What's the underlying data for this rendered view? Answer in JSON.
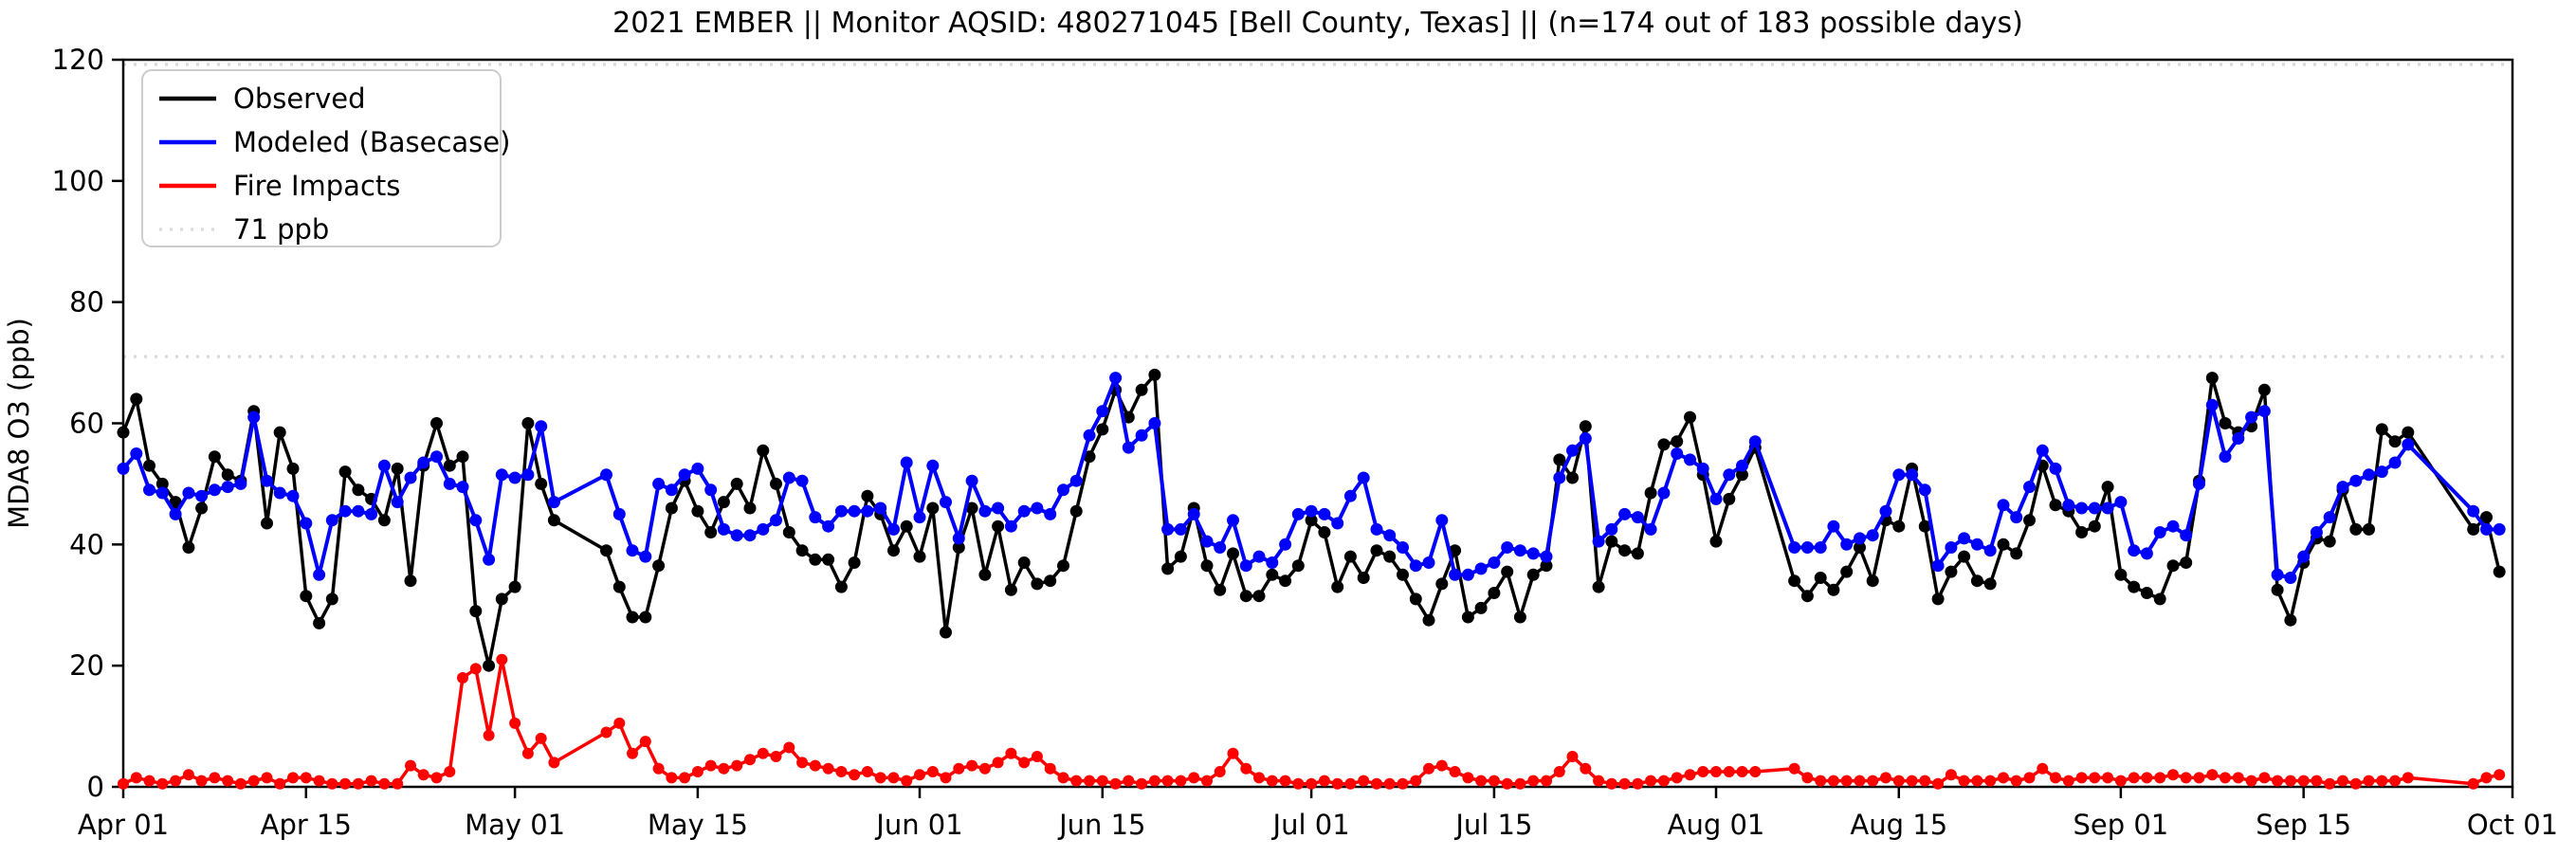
{
  "title": "2021 EMBER || Monitor AQSID: 480271045 [Bell County, Texas] || (n=174 out of 183 possible days)",
  "axes": {
    "ylabel": "MDA8 O3 (ppb)",
    "ylim": [
      0,
      120
    ],
    "yticks": [
      {
        "label": "0",
        "value": 0
      },
      {
        "label": "20",
        "value": 20
      },
      {
        "label": "40",
        "value": 40
      },
      {
        "label": "60",
        "value": 60
      },
      {
        "label": "80",
        "value": 80
      },
      {
        "label": "100",
        "value": 100
      },
      {
        "label": "120",
        "value": 120
      }
    ],
    "xticks": [
      {
        "label": "Apr 01",
        "day": 0
      },
      {
        "label": "Apr 15",
        "day": 14
      },
      {
        "label": "May 01",
        "day": 30
      },
      {
        "label": "May 15",
        "day": 44
      },
      {
        "label": "Jun 01",
        "day": 61
      },
      {
        "label": "Jun 15",
        "day": 75
      },
      {
        "label": "Jul 01",
        "day": 91
      },
      {
        "label": "Jul 15",
        "day": 105
      },
      {
        "label": "Aug 01",
        "day": 122
      },
      {
        "label": "Aug 15",
        "day": 136
      },
      {
        "label": "Sep 01",
        "day": 153
      },
      {
        "label": "Sep 15",
        "day": 167
      },
      {
        "label": "Oct 01",
        "day": 183
      }
    ],
    "xlim_days": [
      0,
      183
    ]
  },
  "legend": {
    "items": [
      {
        "label": "Observed",
        "color": "#000000",
        "style": "solid"
      },
      {
        "label": "Modeled (Basecase)",
        "color": "#0000ff",
        "style": "solid"
      },
      {
        "label": "Fire Impacts",
        "color": "#ff0000",
        "style": "solid"
      },
      {
        "label": "71 ppb",
        "color": "#d9d9d9",
        "style": "dotted"
      }
    ]
  },
  "threshold": {
    "value": 71,
    "color": "#d9d9d9"
  },
  "chart_data": {
    "type": "line",
    "x_start": "Apr 01",
    "x_end": "Sep 30",
    "n_days": 183,
    "n_observed": 174,
    "grid": false,
    "legend_position": "upper left",
    "missing_days_note": "gaps: May 05-07, Aug 05-06, Sep 24-27",
    "series": [
      {
        "name": "Observed",
        "color": "#000000",
        "marker": "circle",
        "values": [
          58.5,
          64,
          53,
          50,
          47,
          39.5,
          46,
          54.5,
          51.5,
          50.5,
          62,
          43.5,
          58.5,
          52.5,
          31.5,
          27,
          31,
          52,
          49,
          47.5,
          44,
          52.5,
          34,
          53,
          60,
          53,
          54.5,
          29,
          20,
          31,
          33,
          60,
          50,
          44,
          null,
          null,
          null,
          39,
          33,
          28,
          28,
          36.5,
          46,
          50.5,
          45.5,
          42,
          47,
          50,
          46,
          55.5,
          50,
          42,
          39,
          37.5,
          37.5,
          33,
          37,
          48,
          45,
          39,
          43,
          38,
          46,
          25.5,
          39.5,
          46,
          35,
          43,
          32.5,
          37,
          33.5,
          34,
          36.5,
          45.5,
          54.5,
          59,
          65.5,
          61,
          65.5,
          68,
          36,
          38,
          46,
          36.5,
          32.5,
          38.5,
          31.5,
          31.5,
          35,
          34,
          36.5,
          44,
          42,
          33,
          38,
          34.5,
          39,
          38,
          35,
          31,
          27.5,
          33.5,
          39,
          28,
          29.5,
          32,
          35.5,
          28,
          35,
          36.5,
          54,
          51,
          59.5,
          33,
          40.5,
          39,
          38.5,
          48.5,
          56.5,
          57,
          61,
          51.5,
          40.5,
          47.5,
          51.5,
          56,
          null,
          null,
          34,
          31.5,
          34.5,
          32.5,
          35.5,
          39.5,
          34,
          44,
          43,
          52.5,
          43,
          31,
          35.5,
          38,
          34,
          33.5,
          40,
          38.5,
          44,
          53,
          46.5,
          45.5,
          42,
          43,
          49.5,
          35,
          33,
          32,
          31,
          36.5,
          37,
          50.5,
          67.5,
          60,
          58.5,
          59.5,
          65.5,
          32.5,
          27.5,
          37,
          41,
          40.5,
          49,
          42.5,
          42.5,
          59,
          57,
          58.5,
          null,
          null,
          null,
          null,
          42.5,
          44.5,
          35.5
        ]
      },
      {
        "name": "Modeled (Basecase)",
        "color": "#0000ff",
        "marker": "circle",
        "values": [
          52.5,
          55,
          49,
          48.5,
          45,
          48.5,
          48,
          49,
          49.5,
          50,
          61,
          50.5,
          48.5,
          48,
          43.5,
          35,
          44,
          45.5,
          45.5,
          45,
          53,
          47,
          51,
          53.5,
          54.5,
          50,
          49.5,
          44,
          37.5,
          51.5,
          51,
          51.5,
          59.5,
          47,
          null,
          null,
          null,
          51.5,
          45,
          39,
          38,
          50,
          49,
          51.5,
          52.5,
          49,
          42.5,
          41.5,
          41.5,
          42.5,
          44,
          51,
          50.5,
          44.5,
          43,
          45.5,
          45.5,
          45.5,
          46,
          42.5,
          53.5,
          44.5,
          53,
          47,
          41,
          50.5,
          45.5,
          46,
          43,
          45.5,
          46,
          45,
          49,
          50.5,
          58,
          62,
          67.5,
          56,
          58,
          60,
          42.5,
          42.5,
          45,
          40.5,
          39.5,
          44,
          36.5,
          38,
          37,
          40,
          45,
          45.5,
          45,
          43.5,
          48,
          51,
          42.5,
          41.5,
          39.5,
          36.5,
          37,
          44,
          35,
          35,
          36,
          37,
          39.5,
          39,
          38.5,
          38,
          51,
          55.5,
          57.5,
          40.5,
          42.5,
          45,
          44.5,
          42.5,
          48.5,
          55,
          54,
          52.5,
          47.5,
          51.5,
          53,
          57,
          null,
          null,
          39.5,
          39.5,
          39.5,
          43,
          40,
          41,
          41.5,
          45.5,
          51.5,
          51.5,
          49,
          36.5,
          39.5,
          41,
          40,
          39,
          46.5,
          44.5,
          49.5,
          55.5,
          52.5,
          46.5,
          46,
          46,
          46,
          47,
          39,
          38.5,
          42,
          43,
          41.5,
          50,
          63,
          54.5,
          57.5,
          61,
          62,
          35,
          34.5,
          38,
          42,
          44.5,
          49.5,
          50.5,
          51.5,
          52,
          53.5,
          56.5,
          null,
          null,
          null,
          null,
          45.5,
          42.5,
          42.5
        ]
      },
      {
        "name": "Fire Impacts",
        "color": "#ff0000",
        "marker": "circle",
        "values": [
          0.5,
          1.5,
          1,
          0.5,
          1,
          2,
          1,
          1.5,
          1,
          0.5,
          1,
          1.5,
          0.5,
          1.5,
          1.5,
          1,
          0.5,
          0.5,
          0.5,
          1,
          0.5,
          0.5,
          3.5,
          2,
          1.5,
          2.5,
          18,
          19.5,
          8.5,
          21,
          10.5,
          5.5,
          8,
          4,
          null,
          null,
          null,
          9,
          10.5,
          5.5,
          7.5,
          3,
          1.5,
          1.5,
          2.5,
          3.5,
          3,
          3.5,
          4.5,
          5.5,
          5,
          6.5,
          4,
          3.5,
          3,
          2.5,
          2,
          2.5,
          1.5,
          1.5,
          1,
          2,
          2.5,
          1.5,
          3,
          3.5,
          3,
          4,
          5.5,
          4,
          5,
          3,
          1.5,
          1,
          1,
          1,
          0.5,
          1,
          0.5,
          1,
          1,
          1,
          1.5,
          1,
          2.5,
          5.5,
          3,
          1.5,
          1,
          1,
          0.5,
          0.5,
          1,
          0.5,
          0.5,
          1,
          0.5,
          0.5,
          0.5,
          1,
          3,
          3.5,
          2.5,
          1.5,
          1,
          1,
          0.5,
          0.5,
          1,
          1,
          2.5,
          5,
          3,
          1,
          0.5,
          0.5,
          0.5,
          1,
          1,
          1.5,
          2,
          2.5,
          2.5,
          2.5,
          2.5,
          2.5,
          null,
          null,
          3,
          1.5,
          1,
          1,
          1,
          1,
          1,
          1.5,
          1,
          1,
          1,
          0.5,
          2,
          1,
          1,
          1,
          1.5,
          1,
          1.5,
          3,
          1.5,
          1,
          1.5,
          1.5,
          1.5,
          1,
          1.5,
          1.5,
          1.5,
          2,
          1.5,
          1.5,
          2,
          1.5,
          1.5,
          1,
          1.5,
          1,
          1,
          1,
          1,
          0.5,
          1,
          0.5,
          1,
          1,
          1,
          1.5,
          null,
          null,
          null,
          null,
          0.5,
          1.5,
          2
        ]
      }
    ],
    "threshold_line": {
      "label": "71 ppb",
      "value": 71,
      "style": "dotted",
      "color": "#d9d9d9"
    }
  }
}
